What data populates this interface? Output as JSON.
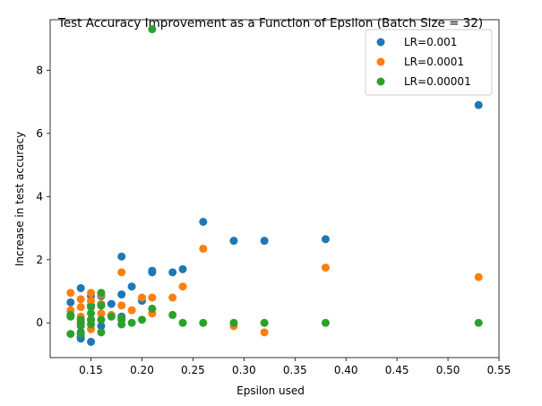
{
  "chart_data": {
    "type": "scatter",
    "title": "Test Accuracy Improvement as a Function of Epsilon (Batch Size = 32)",
    "xlabel": "Epsilon used",
    "ylabel": "Increase in test accuracy",
    "xlim": [
      0.11,
      0.55
    ],
    "ylim": [
      -1.1,
      9.6
    ],
    "x_ticks": [
      0.15,
      0.2,
      0.25,
      0.3,
      0.35,
      0.4,
      0.45,
      0.5,
      0.55
    ],
    "x_tick_labels": [
      "0.15",
      "0.20",
      "0.25",
      "0.30",
      "0.35",
      "0.40",
      "0.45",
      "0.50",
      "0.55"
    ],
    "y_ticks": [
      0,
      2,
      4,
      6,
      8
    ],
    "y_tick_labels": [
      "0",
      "2",
      "4",
      "6",
      "8"
    ],
    "grid": false,
    "legend_position": "top-right",
    "series": [
      {
        "name": "LR=0.001",
        "color": "#1f77b4",
        "points": [
          [
            0.13,
            0.65
          ],
          [
            0.14,
            1.1
          ],
          [
            0.14,
            -0.45
          ],
          [
            0.14,
            -0.5
          ],
          [
            0.14,
            -0.3
          ],
          [
            0.15,
            0.85
          ],
          [
            0.15,
            0.55
          ],
          [
            0.15,
            0.1
          ],
          [
            0.15,
            -0.6
          ],
          [
            0.16,
            0.85
          ],
          [
            0.16,
            0.55
          ],
          [
            0.16,
            -0.1
          ],
          [
            0.17,
            0.6
          ],
          [
            0.18,
            2.1
          ],
          [
            0.18,
            0.9
          ],
          [
            0.18,
            0.2
          ],
          [
            0.19,
            1.15
          ],
          [
            0.2,
            0.7
          ],
          [
            0.21,
            1.65
          ],
          [
            0.21,
            1.6
          ],
          [
            0.23,
            1.6
          ],
          [
            0.24,
            1.7
          ],
          [
            0.26,
            3.2
          ],
          [
            0.29,
            2.6
          ],
          [
            0.32,
            2.6
          ],
          [
            0.38,
            2.65
          ],
          [
            0.53,
            6.9
          ]
        ]
      },
      {
        "name": "LR=0.0001",
        "color": "#ff7f0e",
        "points": [
          [
            0.13,
            0.95
          ],
          [
            0.13,
            0.4
          ],
          [
            0.14,
            0.75
          ],
          [
            0.14,
            0.5
          ],
          [
            0.14,
            0.2
          ],
          [
            0.14,
            0.0
          ],
          [
            0.15,
            0.95
          ],
          [
            0.15,
            0.7
          ],
          [
            0.15,
            -0.2
          ],
          [
            0.16,
            0.9
          ],
          [
            0.16,
            0.6
          ],
          [
            0.16,
            0.3
          ],
          [
            0.17,
            0.25
          ],
          [
            0.18,
            1.6
          ],
          [
            0.18,
            0.55
          ],
          [
            0.19,
            0.4
          ],
          [
            0.2,
            0.8
          ],
          [
            0.21,
            0.8
          ],
          [
            0.21,
            0.3
          ],
          [
            0.23,
            0.8
          ],
          [
            0.24,
            1.15
          ],
          [
            0.26,
            2.35
          ],
          [
            0.29,
            -0.1
          ],
          [
            0.32,
            -0.3
          ],
          [
            0.38,
            1.75
          ],
          [
            0.53,
            1.45
          ]
        ]
      },
      {
        "name": "LR=0.00001",
        "color": "#2ca02c",
        "points": [
          [
            0.13,
            0.2
          ],
          [
            0.13,
            0.25
          ],
          [
            0.13,
            -0.35
          ],
          [
            0.14,
            0.1
          ],
          [
            0.14,
            0.0
          ],
          [
            0.14,
            -0.1
          ],
          [
            0.14,
            -0.35
          ],
          [
            0.15,
            0.5
          ],
          [
            0.15,
            0.3
          ],
          [
            0.15,
            0.1
          ],
          [
            0.15,
            -0.05
          ],
          [
            0.16,
            0.95
          ],
          [
            0.16,
            0.55
          ],
          [
            0.16,
            0.1
          ],
          [
            0.16,
            -0.3
          ],
          [
            0.17,
            0.2
          ],
          [
            0.18,
            0.1
          ],
          [
            0.18,
            0.15
          ],
          [
            0.18,
            -0.05
          ],
          [
            0.19,
            0.0
          ],
          [
            0.2,
            0.1
          ],
          [
            0.21,
            9.3
          ],
          [
            0.21,
            0.45
          ],
          [
            0.23,
            0.25
          ],
          [
            0.24,
            0.0
          ],
          [
            0.26,
            0.0
          ],
          [
            0.29,
            0.0
          ],
          [
            0.32,
            0.0
          ],
          [
            0.38,
            0.0
          ],
          [
            0.53,
            0.0
          ]
        ]
      }
    ]
  }
}
